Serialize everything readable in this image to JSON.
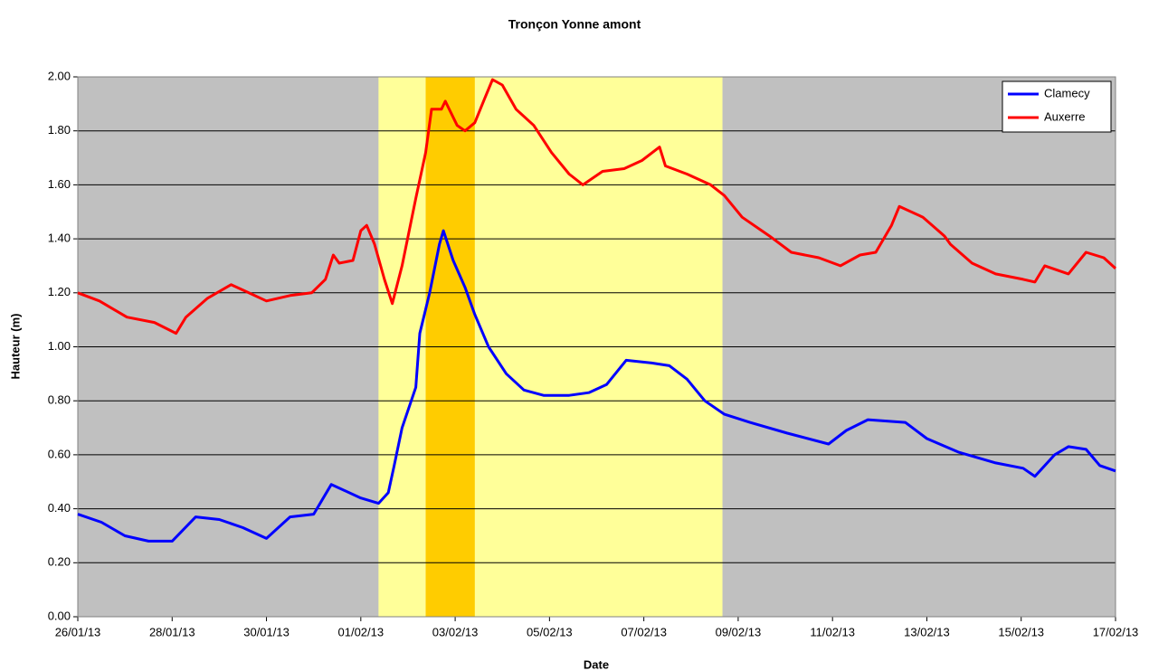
{
  "chart_data": {
    "type": "line",
    "title": "Tronçon Yonne amont",
    "xlabel": "Date",
    "ylabel": "Hauteur (m)",
    "xlim": [
      "2013-01-26T00:00",
      "2013-02-17T00:00"
    ],
    "xticks": [
      {
        "value": "2013-01-26T00:00",
        "label": "26/01/13"
      },
      {
        "value": "2013-01-28T00:00",
        "label": "28/01/13"
      },
      {
        "value": "2013-01-30T00:00",
        "label": "30/01/13"
      },
      {
        "value": "2013-02-01T00:00",
        "label": "01/02/13"
      },
      {
        "value": "2013-02-03T00:00",
        "label": "03/02/13"
      },
      {
        "value": "2013-02-05T00:00",
        "label": "05/02/13"
      },
      {
        "value": "2013-02-07T00:00",
        "label": "07/02/13"
      },
      {
        "value": "2013-02-09T00:00",
        "label": "09/02/13"
      },
      {
        "value": "2013-02-11T00:00",
        "label": "11/02/13"
      },
      {
        "value": "2013-02-13T00:00",
        "label": "13/02/13"
      },
      {
        "value": "2013-02-15T00:00",
        "label": "15/02/13"
      },
      {
        "value": "2013-02-17T00:00",
        "label": "17/02/13"
      }
    ],
    "ylim": [
      0,
      2
    ],
    "yticks": [
      {
        "value": 0,
        "label": "0.00"
      },
      {
        "value": 0.2,
        "label": "0.20"
      },
      {
        "value": 0.4,
        "label": "0.40"
      },
      {
        "value": 0.6,
        "label": "0.60"
      },
      {
        "value": 0.8,
        "label": "0.80"
      },
      {
        "value": 1,
        "label": "1.00"
      },
      {
        "value": 1.2,
        "label": "1.20"
      },
      {
        "value": 1.4,
        "label": "1.40"
      },
      {
        "value": 1.6,
        "label": "1.60"
      },
      {
        "value": 1.8,
        "label": "1.80"
      },
      {
        "value": 2,
        "label": "2.00"
      }
    ],
    "grid": true,
    "legend": "top-right",
    "background": "#c0c0c0",
    "bands": [
      {
        "start": "2013-02-01T09:00",
        "end": "2013-02-08T16:00",
        "color": "#ffff99"
      },
      {
        "start": "2013-02-02T09:00",
        "end": "2013-02-03T10:00",
        "color": "#ffcc00"
      }
    ],
    "series": [
      {
        "name": "Clamecy",
        "color": "#0000ff",
        "x": [
          "2013-01-26T00:00",
          "2013-01-26T12:00",
          "2013-01-27T00:00",
          "2013-01-27T12:00",
          "2013-01-28T00:00",
          "2013-01-28T12:00",
          "2013-01-29T00:00",
          "2013-01-29T12:00",
          "2013-01-30T00:00",
          "2013-01-30T12:00",
          "2013-01-31T00:00",
          "2013-01-31T09:00",
          "2013-02-01T00:00",
          "2013-02-01T09:00",
          "2013-02-01T14:00",
          "2013-02-01T17:00",
          "2013-02-01T21:00",
          "2013-02-02T04:00",
          "2013-02-02T06:00",
          "2013-02-02T11:00",
          "2013-02-02T16:00",
          "2013-02-02T18:00",
          "2013-02-02T23:00",
          "2013-02-03T05:00",
          "2013-02-03T10:00",
          "2013-02-03T17:00",
          "2013-02-04T02:00",
          "2013-02-04T11:00",
          "2013-02-04T21:00",
          "2013-02-05T10:00",
          "2013-02-05T20:00",
          "2013-02-06T05:00",
          "2013-02-06T15:00",
          "2013-02-07T04:00",
          "2013-02-07T13:00",
          "2013-02-07T22:00",
          "2013-02-08T07:00",
          "2013-02-08T17:00",
          "2013-02-09T06:00",
          "2013-02-10T01:00",
          "2013-02-10T22:00",
          "2013-02-11T07:00",
          "2013-02-11T18:00",
          "2013-02-12T13:00",
          "2013-02-13T00:00",
          "2013-02-13T16:00",
          "2013-02-14T11:00",
          "2013-02-15T01:00",
          "2013-02-15T07:00",
          "2013-02-15T17:00",
          "2013-02-16T00:00",
          "2013-02-16T09:00",
          "2013-02-16T16:00",
          "2013-02-17T00:00"
        ],
        "values": [
          0.38,
          0.35,
          0.3,
          0.28,
          0.28,
          0.37,
          0.36,
          0.33,
          0.29,
          0.37,
          0.38,
          0.49,
          0.44,
          0.42,
          0.46,
          0.56,
          0.7,
          0.85,
          1.05,
          1.2,
          1.38,
          1.43,
          1.32,
          1.22,
          1.12,
          1.0,
          0.9,
          0.84,
          0.82,
          0.82,
          0.83,
          0.86,
          0.95,
          0.94,
          0.93,
          0.88,
          0.8,
          0.75,
          0.72,
          0.68,
          0.64,
          0.69,
          0.73,
          0.72,
          0.66,
          0.61,
          0.57,
          0.55,
          0.52,
          0.6,
          0.63,
          0.62,
          0.56,
          0.54
        ]
      },
      {
        "name": "Auxerre",
        "color": "#ff0000",
        "x": [
          "2013-01-26T00:00",
          "2013-01-26T11:00",
          "2013-01-27T01:00",
          "2013-01-27T15:00",
          "2013-01-28T02:00",
          "2013-01-28T07:00",
          "2013-01-28T18:00",
          "2013-01-29T06:00",
          "2013-01-29T15:00",
          "2013-01-30T00:00",
          "2013-01-30T12:00",
          "2013-01-30T23:00",
          "2013-01-31T06:00",
          "2013-01-31T10:00",
          "2013-01-31T13:00",
          "2013-01-31T20:00",
          "2013-02-01T00:00",
          "2013-02-01T03:00",
          "2013-02-01T07:00",
          "2013-02-01T12:00",
          "2013-02-01T16:00",
          "2013-02-01T21:00",
          "2013-02-02T04:00",
          "2013-02-02T09:00",
          "2013-02-02T12:00",
          "2013-02-02T17:00",
          "2013-02-02T19:00",
          "2013-02-03T01:00",
          "2013-02-03T05:00",
          "2013-02-03T10:00",
          "2013-02-03T15:00",
          "2013-02-03T19:00",
          "2013-02-04T00:00",
          "2013-02-04T07:00",
          "2013-02-04T16:00",
          "2013-02-05T01:00",
          "2013-02-05T10:00",
          "2013-02-05T17:00",
          "2013-02-06T03:00",
          "2013-02-06T14:00",
          "2013-02-06T23:00",
          "2013-02-07T08:00",
          "2013-02-07T11:00",
          "2013-02-07T22:00",
          "2013-02-08T10:00",
          "2013-02-08T17:00",
          "2013-02-09T02:00",
          "2013-02-09T16:00",
          "2013-02-10T03:00",
          "2013-02-10T17:00",
          "2013-02-11T04:00",
          "2013-02-11T14:00",
          "2013-02-11T22:00",
          "2013-02-12T06:00",
          "2013-02-12T10:00",
          "2013-02-12T22:00",
          "2013-02-13T09:00",
          "2013-02-13T12:00",
          "2013-02-13T23:00",
          "2013-02-14T11:00",
          "2013-02-15T01:00",
          "2013-02-15T07:00",
          "2013-02-15T12:00",
          "2013-02-16T00:00",
          "2013-02-16T09:00",
          "2013-02-16T18:00",
          "2013-02-17T00:00"
        ],
        "values": [
          1.2,
          1.17,
          1.11,
          1.09,
          1.05,
          1.11,
          1.18,
          1.23,
          1.2,
          1.17,
          1.19,
          1.2,
          1.25,
          1.34,
          1.31,
          1.32,
          1.43,
          1.45,
          1.38,
          1.25,
          1.16,
          1.3,
          1.55,
          1.72,
          1.88,
          1.88,
          1.91,
          1.82,
          1.8,
          1.83,
          1.92,
          1.99,
          1.97,
          1.88,
          1.82,
          1.72,
          1.64,
          1.6,
          1.65,
          1.66,
          1.69,
          1.74,
          1.67,
          1.64,
          1.6,
          1.56,
          1.48,
          1.41,
          1.35,
          1.33,
          1.3,
          1.34,
          1.35,
          1.45,
          1.52,
          1.48,
          1.41,
          1.38,
          1.31,
          1.27,
          1.25,
          1.24,
          1.3,
          1.27,
          1.35,
          1.33,
          1.29
        ]
      }
    ]
  }
}
